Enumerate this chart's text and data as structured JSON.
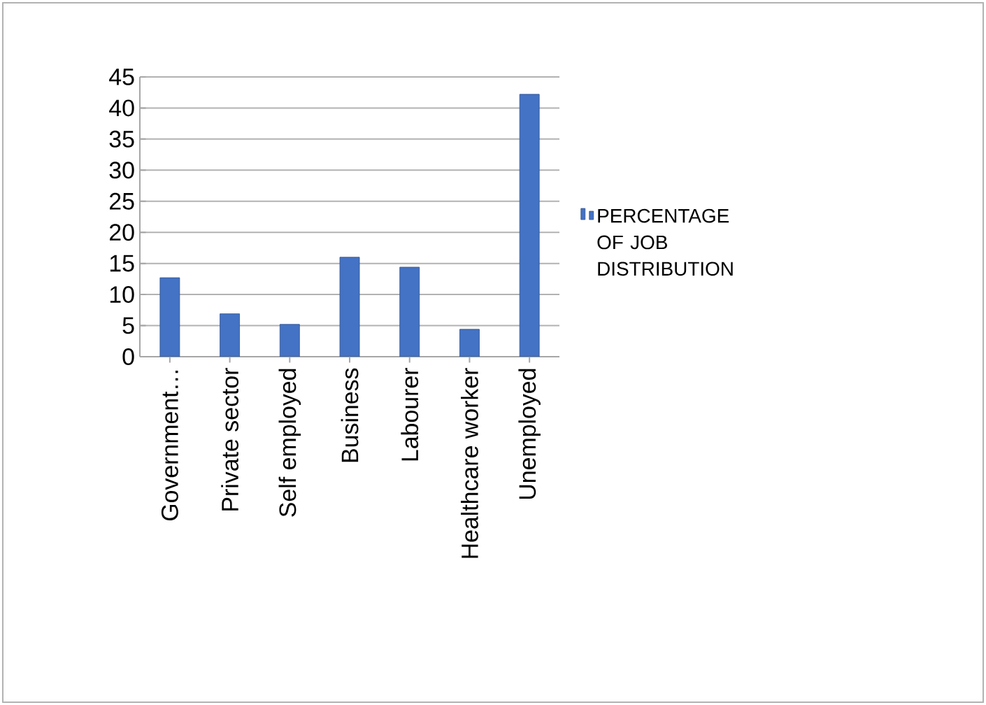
{
  "chart_data": {
    "type": "bar",
    "categories": [
      "Government…",
      "Private sector",
      "Self employed",
      "Business",
      "Labourer",
      "Healthcare worker",
      "Unemployed"
    ],
    "series": [
      {
        "name": "PERCENTAGE OF JOB DISTRIBUTION",
        "color": "#4472c4",
        "values": [
          12.7,
          6.9,
          5.2,
          16,
          14.4,
          4.4,
          42.2
        ]
      }
    ],
    "ylim": [
      0,
      45
    ],
    "yticks": [
      0,
      5,
      10,
      15,
      20,
      25,
      30,
      35,
      40,
      45
    ],
    "grid": "y",
    "legend": "right"
  }
}
